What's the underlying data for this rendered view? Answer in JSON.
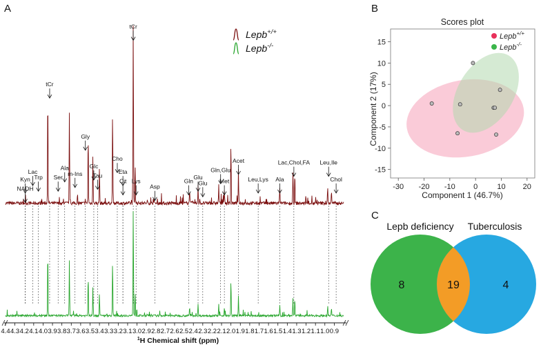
{
  "panels": {
    "a": "A",
    "b": "B",
    "c": "C"
  },
  "spectrum": {
    "legend": [
      {
        "base": "Lepb",
        "sup": "+/+",
        "color": "#7a0e0e"
      },
      {
        "base": "Lepb",
        "sup": "-/-",
        "color": "#27a52c"
      }
    ],
    "xlabel_sup": "1",
    "xlabel_main": "H Chemical shift (ppm)"
  },
  "chart_data": [
    {
      "type": "line",
      "title": "",
      "xlabel": "1H Chemical shift (ppm)",
      "xlim": [
        4.4,
        0.8
      ],
      "x_reversed": true,
      "x_ticks": [
        "4.4",
        "4.3",
        "4.2",
        "4.1",
        "4.0",
        "3.9",
        "3.8",
        "3.7",
        "3.6",
        "3.5",
        "3.4",
        "3.3",
        "3.2",
        "3.1",
        "3.0",
        "2.9",
        "2.8",
        "2.7",
        "2.6",
        "2.5",
        "2.4",
        "2.3",
        "2.2",
        "2.1",
        "2.0",
        "1.9",
        "1.8",
        "1.7",
        "1.6",
        "1.5",
        "1.4",
        "1.3",
        "1.2",
        "1.1",
        "1.0",
        "0.9"
      ],
      "series": [
        {
          "name": "Lepb+/+",
          "color": "#7a0e0e"
        },
        {
          "name": "Lepb-/-",
          "color": "#27a52c"
        }
      ],
      "peaks": [
        {
          "ppm": 3.95,
          "height": 0.62
        },
        {
          "ppm": 3.72,
          "height": 0.5
        },
        {
          "ppm": 3.52,
          "height": 0.38
        },
        {
          "ppm": 3.47,
          "height": 0.26
        },
        {
          "ppm": 3.4,
          "height": 0.2
        },
        {
          "ppm": 3.26,
          "height": 0.5
        },
        {
          "ppm": 3.04,
          "height": 1.0
        },
        {
          "ppm": 3.02,
          "height": 0.22
        },
        {
          "ppm": 2.44,
          "height": 0.08
        },
        {
          "ppm": 2.35,
          "height": 0.1
        },
        {
          "ppm": 2.13,
          "height": 0.1
        },
        {
          "ppm": 2.07,
          "height": 0.08
        },
        {
          "ppm": 2.0,
          "height": 0.33
        },
        {
          "ppm": 1.92,
          "height": 0.18
        },
        {
          "ppm": 1.48,
          "height": 0.09
        },
        {
          "ppm": 1.34,
          "height": 0.16
        },
        {
          "ppm": 1.32,
          "height": 0.16
        },
        {
          "ppm": 0.97,
          "height": 0.09
        },
        {
          "ppm": 0.93,
          "height": 0.07
        }
      ],
      "annotations": [
        {
          "label": [
            "tCr"
          ],
          "ppm": 3.04,
          "level": 0.95
        },
        {
          "label": [
            "tCr"
          ],
          "ppm": 3.93,
          "level": 0.64
        },
        {
          "label": [
            "Gly"
          ],
          "ppm": 3.55,
          "level": 0.36
        },
        {
          "label": [
            "Cho"
          ],
          "ppm": 3.21,
          "level": 0.24
        },
        {
          "label": [
            "Glc"
          ],
          "ppm": 3.46,
          "level": 0.2
        },
        {
          "label": [
            "Tau"
          ],
          "ppm": 3.42,
          "level": 0.15
        },
        {
          "label": [
            "Eta"
          ],
          "ppm": 3.15,
          "level": 0.17
        },
        {
          "label": [
            "Cit"
          ],
          "ppm": 3.15,
          "level": 0.12
        },
        {
          "label": [
            "Lys"
          ],
          "ppm": 3.01,
          "level": 0.12
        },
        {
          "label": [
            "m-Ins"
          ],
          "ppm": 3.66,
          "level": 0.16
        },
        {
          "label": [
            "Ala"
          ],
          "ppm": 3.77,
          "level": 0.19
        },
        {
          "label": [
            "Ser"
          ],
          "ppm": 3.84,
          "level": 0.14
        },
        {
          "label": [
            "Lac"
          ],
          "ppm": 4.11,
          "level": 0.17
        },
        {
          "label": [
            "Trp"
          ],
          "ppm": 4.05,
          "level": 0.14
        },
        {
          "label": [
            "Kyn"
          ],
          "ppm": 4.19,
          "level": 0.13
        },
        {
          "label": [
            "NADH"
          ],
          "ppm": 4.19,
          "level": 0.08
        },
        {
          "label": [
            "Asp"
          ],
          "ppm": 2.81,
          "level": 0.09
        },
        {
          "label": [
            "Gln"
          ],
          "ppm": 2.45,
          "level": 0.12
        },
        {
          "label": [
            "Glu"
          ],
          "ppm": 2.35,
          "level": 0.14
        },
        {
          "label": [
            "Glu"
          ],
          "ppm": 2.3,
          "level": 0.11
        },
        {
          "label": [
            "Gln,Glu"
          ],
          "ppm": 2.11,
          "level": 0.18
        },
        {
          "label": [
            "Met"
          ],
          "ppm": 2.07,
          "level": 0.12
        },
        {
          "label": [
            "Acet"
          ],
          "ppm": 1.92,
          "level": 0.23
        },
        {
          "label": [
            "Leu,Lys"
          ],
          "ppm": 1.71,
          "level": 0.13
        },
        {
          "label": [
            "Ala"
          ],
          "ppm": 1.48,
          "level": 0.13
        },
        {
          "label": [
            "Lac,Chol,FA"
          ],
          "ppm": 1.33,
          "level": 0.22
        },
        {
          "label": [
            "Leu,Ile"
          ],
          "ppm": 0.96,
          "level": 0.22
        },
        {
          "label": [
            "Chol"
          ],
          "ppm": 0.88,
          "level": 0.13
        }
      ]
    },
    {
      "type": "scatter",
      "title": "Scores plot",
      "xlabel": "Component 1 (46.7%)",
      "ylabel": "Component 2 (17%)",
      "xlim": [
        -33,
        23
      ],
      "ylim": [
        -17,
        18
      ],
      "x_ticks": [
        "-30",
        "-20",
        "-10",
        "0",
        "10",
        "20"
      ],
      "y_ticks": [
        "15",
        "10",
        "5",
        "0",
        "-5",
        "-10",
        "-15"
      ],
      "legend_position": "top-right",
      "grid": false,
      "series": [
        {
          "name_base": "Lepb",
          "name_sup": "+/+",
          "color": "#e8315b",
          "ellipse_color": "#f5a0b8",
          "points": [
            [
              -17,
              0.5
            ],
            [
              -6,
              0.3
            ],
            [
              -7,
              -6.5
            ],
            [
              8,
              -6.8
            ]
          ],
          "ellipse": {
            "cx": -4,
            "cy": -3,
            "rx": 23,
            "ry": 9,
            "angle_deg": -10
          }
        },
        {
          "name_base": "Lepb",
          "name_sup": "-/-",
          "color": "#3bb54a",
          "ellipse_color": "#b2d9ae",
          "points": [
            [
              -1,
              10
            ],
            [
              9.5,
              3.7
            ],
            [
              7,
              -0.5
            ],
            [
              7.5,
              -0.5
            ]
          ],
          "ellipse": {
            "cx": 4,
            "cy": 3,
            "rx": 17,
            "ry": 6.5,
            "angle_deg": -58
          }
        }
      ]
    }
  ],
  "venn": {
    "left": {
      "label": "Lepb deficiency",
      "count": "8",
      "color": "#3cb34a"
    },
    "right": {
      "label": "Tuberculosis",
      "count": "4",
      "color": "#27a8e1"
    },
    "overlap": {
      "count": "19",
      "color": "#f39c26"
    }
  }
}
